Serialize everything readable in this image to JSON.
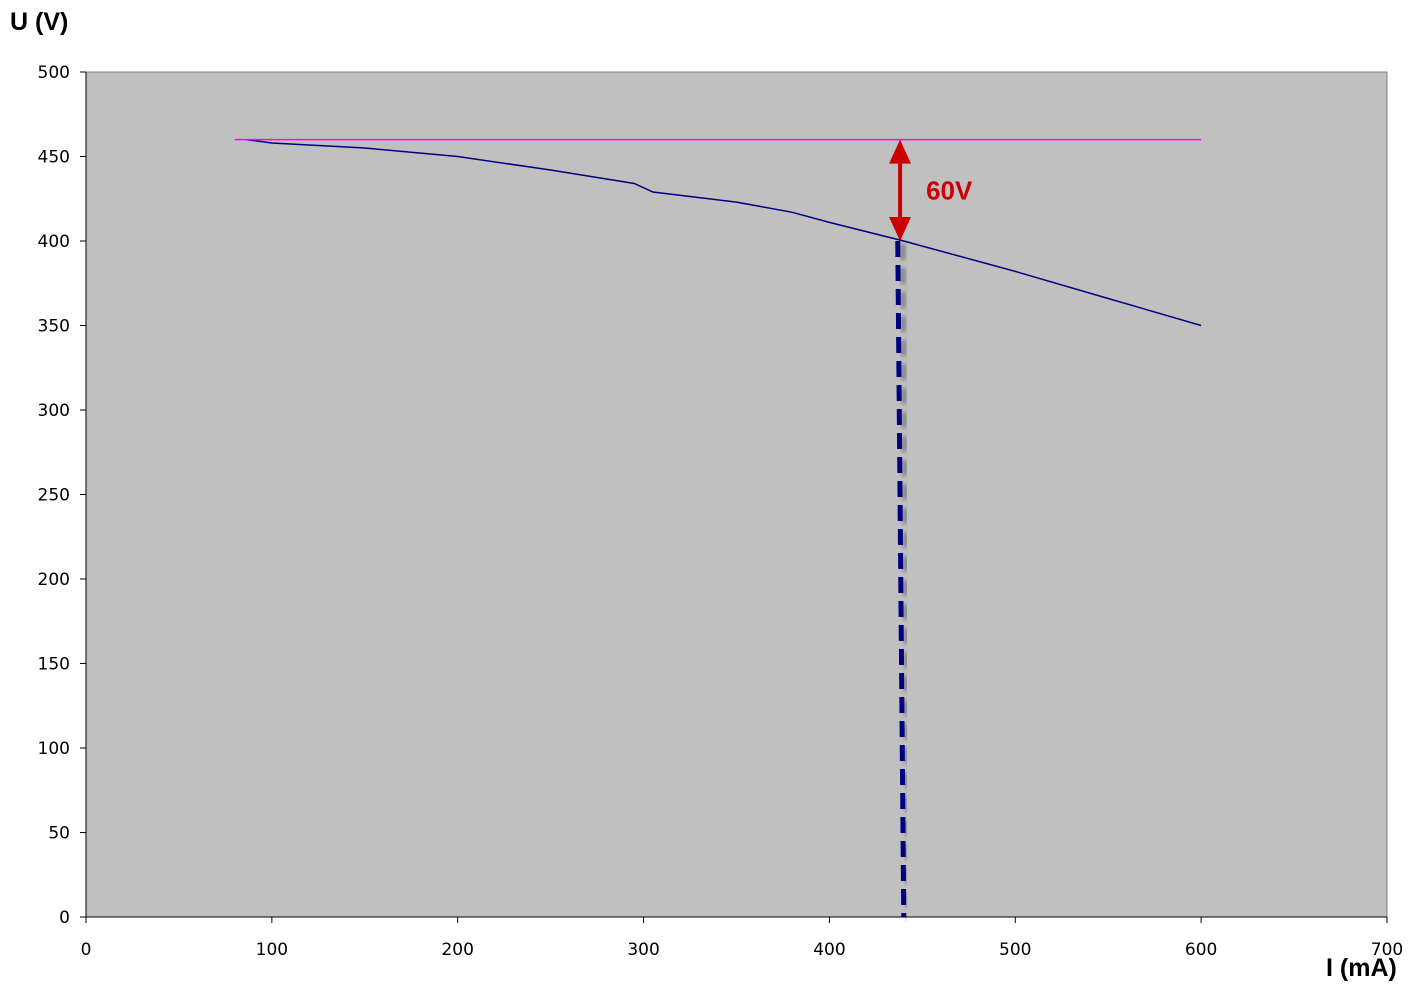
{
  "chart_data": {
    "type": "line",
    "xlabel": "I (mA)",
    "ylabel": "U (V)",
    "xlim": [
      0,
      700
    ],
    "ylim": [
      0,
      500
    ],
    "x_ticks": [
      0,
      100,
      200,
      300,
      400,
      500,
      600,
      700
    ],
    "y_ticks": [
      0,
      50,
      100,
      150,
      200,
      250,
      300,
      350,
      400,
      450,
      500
    ],
    "grid": false,
    "background_color": "#c0c0c0",
    "series": [
      {
        "color": "#000080",
        "x": [
          86,
          100,
          150,
          200,
          250,
          295,
          305,
          350,
          380,
          400,
          440,
          450,
          500,
          550,
          600
        ],
        "y": [
          460,
          458,
          455,
          450,
          442,
          434,
          429,
          423,
          417,
          411,
          400,
          397,
          382,
          366,
          350
        ]
      },
      {
        "color": "#ff00ff",
        "x": [
          80,
          600
        ],
        "y": [
          460,
          460
        ]
      }
    ],
    "annotations": {
      "vertical_marker": {
        "x": 440,
        "y_from": 0,
        "y_to": 400,
        "color": "#000080",
        "style": "dashed"
      },
      "arrow": {
        "x": 438,
        "y_from": 400,
        "y_to": 460,
        "color": "#cc0000"
      },
      "label": {
        "text": "60V",
        "x": 452,
        "y": 430,
        "color": "#cc0000"
      }
    }
  }
}
